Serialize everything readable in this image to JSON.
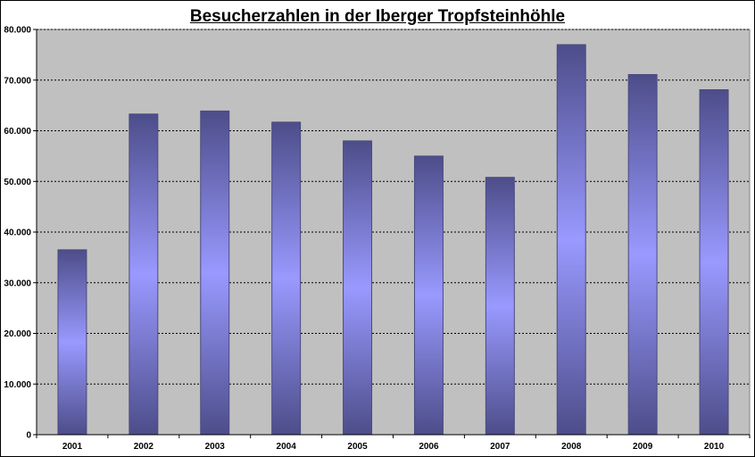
{
  "chart_data": {
    "type": "bar",
    "title": "Besucherzahlen in der Iberger Tropfsteinhöhle",
    "xlabel": "",
    "ylabel": "",
    "categories": [
      "2001",
      "2002",
      "2003",
      "2004",
      "2005",
      "2006",
      "2007",
      "2008",
      "2009",
      "2010"
    ],
    "values": [
      36500,
      63300,
      63900,
      61700,
      58000,
      55000,
      50800,
      77000,
      71100,
      68100
    ],
    "ylim": [
      0,
      80000
    ],
    "yticks": [
      0,
      10000,
      20000,
      30000,
      40000,
      50000,
      60000,
      70000,
      80000
    ],
    "ytick_labels": [
      "0",
      "10.000",
      "20.000",
      "30.000",
      "40.000",
      "50.000",
      "60.000",
      "70.000",
      "80.000"
    ],
    "grid": true,
    "legend": "none",
    "colors": {
      "plot_background": "#c0c0c0",
      "bar_edge": "#4a4a80",
      "bar_center": "#9999ff",
      "bar_outer": "#4d4d8a",
      "gridline": "#000000"
    }
  }
}
